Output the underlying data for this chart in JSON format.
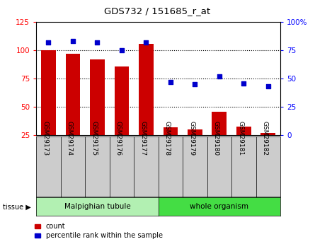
{
  "title": "GDS732 / 151685_r_at",
  "samples": [
    "GSM29173",
    "GSM29174",
    "GSM29175",
    "GSM29176",
    "GSM29177",
    "GSM29178",
    "GSM29179",
    "GSM29180",
    "GSM29181",
    "GSM29182"
  ],
  "counts": [
    100,
    97,
    92,
    86,
    106,
    32,
    30,
    46,
    33,
    27
  ],
  "percentiles": [
    82,
    83,
    82,
    75,
    82,
    47,
    45,
    52,
    46,
    43
  ],
  "tissue_groups": [
    {
      "label": "Malpighian tubule",
      "start": 0,
      "end": 5,
      "color": "#b2f0b2"
    },
    {
      "label": "whole organism",
      "start": 5,
      "end": 10,
      "color": "#44dd44"
    }
  ],
  "ylim_left": [
    25,
    125
  ],
  "ylim_right": [
    0,
    100
  ],
  "yticks_left": [
    25,
    50,
    75,
    100,
    125
  ],
  "yticks_right": [
    0,
    25,
    50,
    75,
    100
  ],
  "yticklabels_right": [
    "0",
    "25",
    "50",
    "75",
    "100%"
  ],
  "bar_color": "#cc0000",
  "dot_color": "#0000cc",
  "sample_bg_color": "#cccccc",
  "tissue_label": "tissue",
  "legend_count_label": "count",
  "legend_percentile_label": "percentile rank within the sample"
}
